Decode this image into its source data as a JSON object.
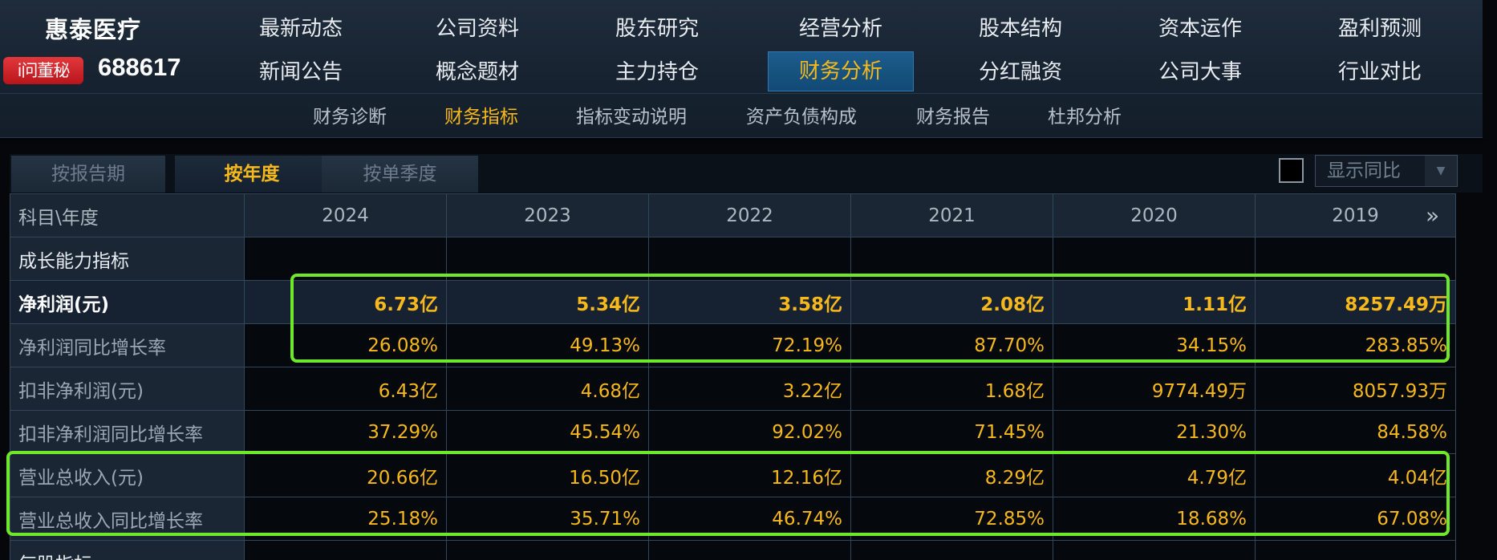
{
  "company": {
    "name": "惠泰医疗",
    "ask_badge": "i问董秘",
    "code": "688617"
  },
  "nav": {
    "row1": [
      "最新动态",
      "公司资料",
      "股东研究",
      "经营分析",
      "股本结构",
      "资本运作",
      "盈利预测"
    ],
    "row2": [
      "新闻公告",
      "概念题材",
      "主力持仓",
      "财务分析",
      "分红融资",
      "公司大事",
      "行业对比"
    ],
    "active": "财务分析"
  },
  "subnav": {
    "items": [
      "财务诊断",
      "财务指标",
      "指标变动说明",
      "资产负债构成",
      "财务报告",
      "杜邦分析"
    ],
    "active": "财务指标"
  },
  "tabs": {
    "items": [
      "按报告期",
      "按年度",
      "按单季度"
    ],
    "active": "按年度"
  },
  "yoy": {
    "label": "显示同比",
    "checked": false
  },
  "table": {
    "corner": "科目\\年度",
    "years": [
      "2024",
      "2023",
      "2022",
      "2021",
      "2020",
      "2019"
    ],
    "more": "»",
    "rows": [
      {
        "label": "成长能力指标",
        "section": true,
        "values": [
          "",
          "",
          "",
          "",
          "",
          ""
        ]
      },
      {
        "label": "净利润(元)",
        "bold": true,
        "values": [
          "6.73亿",
          "5.34亿",
          "3.58亿",
          "2.08亿",
          "1.11亿",
          "8257.49万"
        ]
      },
      {
        "label": "净利润同比增长率",
        "values": [
          "26.08%",
          "49.13%",
          "72.19%",
          "87.70%",
          "34.15%",
          "283.85%"
        ]
      },
      {
        "label": "扣非净利润(元)",
        "values": [
          "6.43亿",
          "4.68亿",
          "3.22亿",
          "1.68亿",
          "9774.49万",
          "8057.93万"
        ]
      },
      {
        "label": "扣非净利润同比增长率",
        "values": [
          "37.29%",
          "45.54%",
          "92.02%",
          "71.45%",
          "21.30%",
          "84.58%"
        ]
      },
      {
        "label": "营业总收入(元)",
        "values": [
          "20.66亿",
          "16.50亿",
          "12.16亿",
          "8.29亿",
          "4.79亿",
          "4.04亿"
        ]
      },
      {
        "label": "营业总收入同比增长率",
        "values": [
          "25.18%",
          "35.71%",
          "46.74%",
          "72.85%",
          "18.68%",
          "67.08%"
        ]
      },
      {
        "label": "每股指标",
        "section": true,
        "values": [
          "",
          "",
          "",
          "",
          "",
          ""
        ]
      }
    ]
  },
  "colors": {
    "accent": "#f7b81c",
    "highlight": "#6ee82b",
    "active_tab_bg": "#1d5c8c",
    "badge": "#d32027"
  }
}
